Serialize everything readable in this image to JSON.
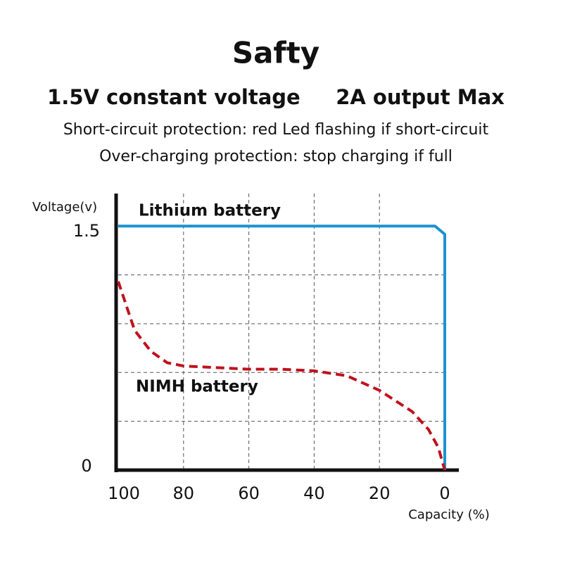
{
  "chart_data": {
    "type": "line",
    "title": "Safty",
    "subtitle": "1.5V constant voltage     2A output Max",
    "notes": [
      "Short-circuit protection: red Led flashing if short-circuit",
      "Over-charging protection: stop charging if full"
    ],
    "y_label": "Voltage(v)",
    "x_label": "Capacity (%)",
    "xlim": [
      100,
      0
    ],
    "xticks": [
      100,
      80,
      60,
      40,
      20,
      0
    ],
    "ylim": [
      0,
      1.7
    ],
    "yticks": [
      0,
      1.5
    ],
    "ygrid": [
      0.3,
      0.6,
      0.9,
      1.2
    ],
    "series": [
      {
        "name": "Lithium battery",
        "color": "#1a93d0",
        "dashed": false,
        "x": [
          100,
          3,
          0,
          0
        ],
        "values": [
          1.5,
          1.5,
          1.45,
          0
        ]
      },
      {
        "name": "NIMH battery",
        "color": "#c0111b",
        "dashed": true,
        "x": [
          100,
          95,
          90,
          85,
          80,
          70,
          60,
          50,
          40,
          30,
          20,
          10,
          5,
          2,
          0
        ],
        "values": [
          1.16,
          0.86,
          0.73,
          0.66,
          0.64,
          0.63,
          0.62,
          0.62,
          0.61,
          0.58,
          0.49,
          0.36,
          0.25,
          0.14,
          0
        ]
      }
    ]
  }
}
